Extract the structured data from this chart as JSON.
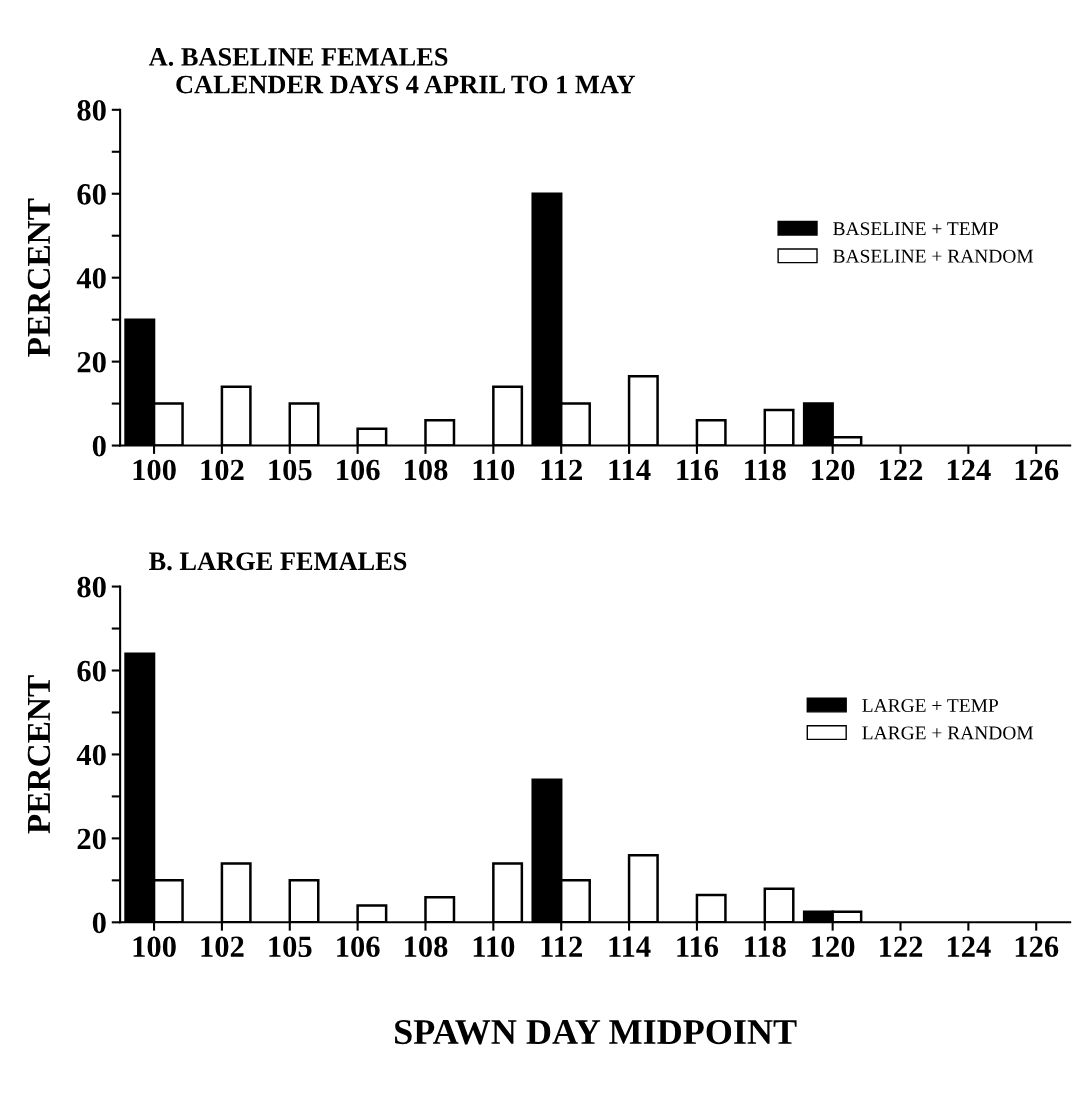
{
  "chart_data": [
    {
      "type": "bar",
      "title": "A. BASELINE FEMALES\n    CALENDER DAYS 4 APRIL TO 1 MAY",
      "ylabel": "PERCENT",
      "categories": [
        "100",
        "102",
        "105",
        "106",
        "108",
        "110",
        "112",
        "114",
        "116",
        "118",
        "120",
        "122",
        "124",
        "126"
      ],
      "series": [
        {
          "name": "BASELINE + TEMP",
          "color": "#000000",
          "values": [
            30,
            0,
            0,
            0,
            0,
            0,
            60,
            0,
            0,
            0,
            10,
            0,
            0,
            0
          ]
        },
        {
          "name": "BASELINE + RANDOM",
          "color": "#ffffff",
          "values": [
            10,
            14,
            10,
            4,
            6,
            14,
            10,
            16.5,
            6,
            8.5,
            2,
            0,
            0,
            0
          ]
        }
      ],
      "ylim": [
        0,
        80
      ],
      "yticks": [
        0,
        {
          "value": 10,
          "label": null
        },
        20,
        {
          "value": 30,
          "label": null
        },
        40,
        {
          "value": 50,
          "label": null
        },
        60,
        {
          "value": 70,
          "label": null
        },
        80
      ],
      "grid": false,
      "legend": "right"
    },
    {
      "type": "bar",
      "title": "B. LARGE FEMALES",
      "ylabel": "PERCENT",
      "xlabel": "SPAWN DAY MIDPOINT",
      "categories": [
        "100",
        "102",
        "105",
        "106",
        "108",
        "110",
        "112",
        "114",
        "116",
        "118",
        "120",
        "122",
        "124",
        "126"
      ],
      "series": [
        {
          "name": "LARGE + TEMP",
          "color": "#000000",
          "values": [
            64,
            0,
            0,
            0,
            0,
            0,
            34,
            0,
            0,
            0,
            2.5,
            0,
            0,
            0
          ]
        },
        {
          "name": "LARGE + RANDOM",
          "color": "#ffffff",
          "values": [
            10,
            14,
            10,
            4,
            6,
            14,
            10,
            16,
            6.5,
            8,
            2.5,
            0,
            0,
            0
          ]
        }
      ],
      "ylim": [
        0,
        80
      ],
      "yticks": [
        0,
        {
          "value": 10,
          "label": null
        },
        20,
        {
          "value": 30,
          "label": null
        },
        40,
        {
          "value": 50,
          "label": null
        },
        60,
        {
          "value": 70,
          "label": null
        },
        80
      ],
      "grid": false,
      "legend": "right"
    }
  ]
}
